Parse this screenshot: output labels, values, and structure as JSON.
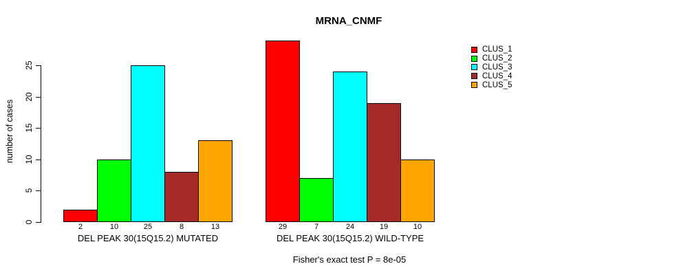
{
  "chart_data": {
    "type": "bar",
    "title": "MRNA_CNMF",
    "xlabel": "",
    "ylabel": "number of cases",
    "ylim": [
      0,
      25
    ],
    "yticks": [
      0,
      5,
      10,
      15,
      20,
      25
    ],
    "grid": false,
    "legend_position": "right-outside",
    "series_labels": [
      "CLUS_1",
      "CLUS_2",
      "CLUS_3",
      "CLUS_4",
      "CLUS_5"
    ],
    "series_colors": [
      "#FF0000",
      "#00FF00",
      "#00FFFF",
      "#A52A2A",
      "#FFA500"
    ],
    "groups": [
      {
        "label": "DEL PEAK 30(15Q15.2) MUTATED",
        "values": [
          2,
          10,
          25,
          8,
          13
        ]
      },
      {
        "label": "DEL PEAK 30(15Q15.2) WILD-TYPE",
        "values": [
          29,
          7,
          24,
          19,
          10
        ]
      }
    ],
    "bar_value_labels_shown": true,
    "annotation": "Fisher's exact test P = 8e-05",
    "background_color": "#FFFFFF",
    "axis_color": "#000000"
  }
}
